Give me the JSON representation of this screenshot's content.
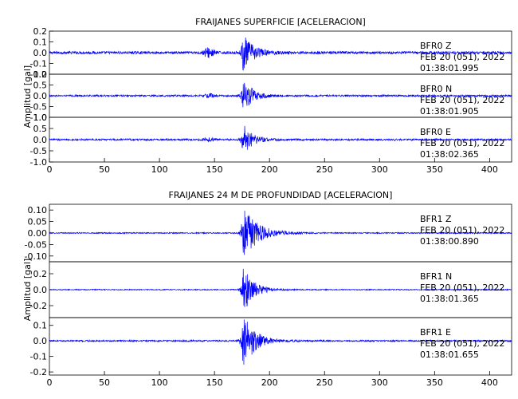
{
  "chart_data": [
    {
      "type": "line",
      "title": "FRAIJANES SUPERFICIE [ACELERACION]",
      "ylabel": "Amplitud [gal]",
      "xlabel": "",
      "xlim": [
        0,
        420
      ],
      "xticks": [
        0,
        50,
        100,
        150,
        200,
        250,
        300,
        350,
        400
      ],
      "grid": false,
      "line_color": "#0000ff",
      "panels": [
        {
          "station": "BFR0",
          "component": "Z",
          "date": "FEB 20 (051), 2022",
          "time": "01:38:01.995",
          "ylim": [
            -0.2,
            0.2
          ],
          "yticks": [
            "0.2",
            "0.1",
            "0.0",
            "-0.1",
            "-0.2"
          ],
          "yticks_values": [
            0.2,
            0.1,
            0.0,
            -0.1,
            -0.2
          ],
          "noise": 0.012,
          "peak_time": 176,
          "peak_amp": 0.17,
          "decay": 9,
          "pre_event": {
            "time": 145,
            "amp": 0.045,
            "width": 5
          }
        },
        {
          "station": "BFR0",
          "component": "N",
          "date": "FEB 20 (051), 2022",
          "time": "01:38:01.905",
          "ylim": [
            -1.0,
            1.0
          ],
          "yticks": [
            "1.0",
            "0.5",
            "0.0",
            "-0.5",
            "-1.0"
          ],
          "yticks_values": [
            1.0,
            0.5,
            0.0,
            -0.5,
            -1.0
          ],
          "noise": 0.04,
          "peak_time": 176,
          "peak_amp": 0.85,
          "decay": 8,
          "pre_event": {
            "time": 145,
            "amp": 0.08,
            "width": 5
          }
        },
        {
          "station": "BFR0",
          "component": "E",
          "date": "FEB 20 (051), 2022",
          "time": "01:38:02.365",
          "ylim": [
            -1.0,
            1.0
          ],
          "yticks": [
            "1.0",
            "0.5",
            "0.0",
            "-0.5",
            "-1.0"
          ],
          "yticks_values": [
            1.0,
            0.5,
            0.0,
            -0.5,
            -1.0
          ],
          "noise": 0.04,
          "peak_time": 176,
          "peak_amp": 0.7,
          "decay": 8,
          "pre_event": {
            "time": 145,
            "amp": 0.07,
            "width": 5
          }
        }
      ]
    },
    {
      "type": "line",
      "title": "FRAIJANES 24 M DE PROFUNDIDAD [ACELERACION]",
      "ylabel": "Amplitud [gal]",
      "xlabel": "",
      "xlim": [
        0,
        420
      ],
      "xticks": [
        0,
        50,
        100,
        150,
        200,
        250,
        300,
        350,
        400
      ],
      "grid": false,
      "line_color": "#0000ff",
      "panels": [
        {
          "station": "BFR1",
          "component": "Z",
          "date": "FEB 20 (051), 2022",
          "time": "01:38:00.890",
          "ylim": [
            -0.125,
            0.125
          ],
          "yticks": [
            "0.10",
            "0.05",
            "0.00",
            "-0.05",
            "-0.10"
          ],
          "yticks_values": [
            0.1,
            0.05,
            0.0,
            -0.05,
            -0.1
          ],
          "noise": 0.0025,
          "peak_time": 176,
          "peak_amp": 0.12,
          "decay": 13,
          "pre_event": null
        },
        {
          "station": "BFR1",
          "component": "N",
          "date": "FEB 20 (051), 2022",
          "time": "01:38:01.365",
          "ylim": [
            -0.35,
            0.35
          ],
          "yticks": [
            "0.2",
            "0.0",
            "-0.2"
          ],
          "yticks_values": [
            0.2,
            0.0,
            -0.2
          ],
          "noise": 0.006,
          "peak_time": 176,
          "peak_amp": 0.32,
          "decay": 9,
          "pre_event": null
        },
        {
          "station": "BFR1",
          "component": "E",
          "date": "FEB 20 (051), 2022",
          "time": "01:38:01.655",
          "ylim": [
            -0.22,
            0.15
          ],
          "yticks": [
            "0.1",
            "0.0",
            "-0.1",
            "-0.2"
          ],
          "yticks_values": [
            0.1,
            0.0,
            -0.1,
            -0.2
          ],
          "noise": 0.005,
          "peak_time": 176,
          "peak_amp": 0.19,
          "decay": 10,
          "pre_event": null
        }
      ]
    }
  ]
}
